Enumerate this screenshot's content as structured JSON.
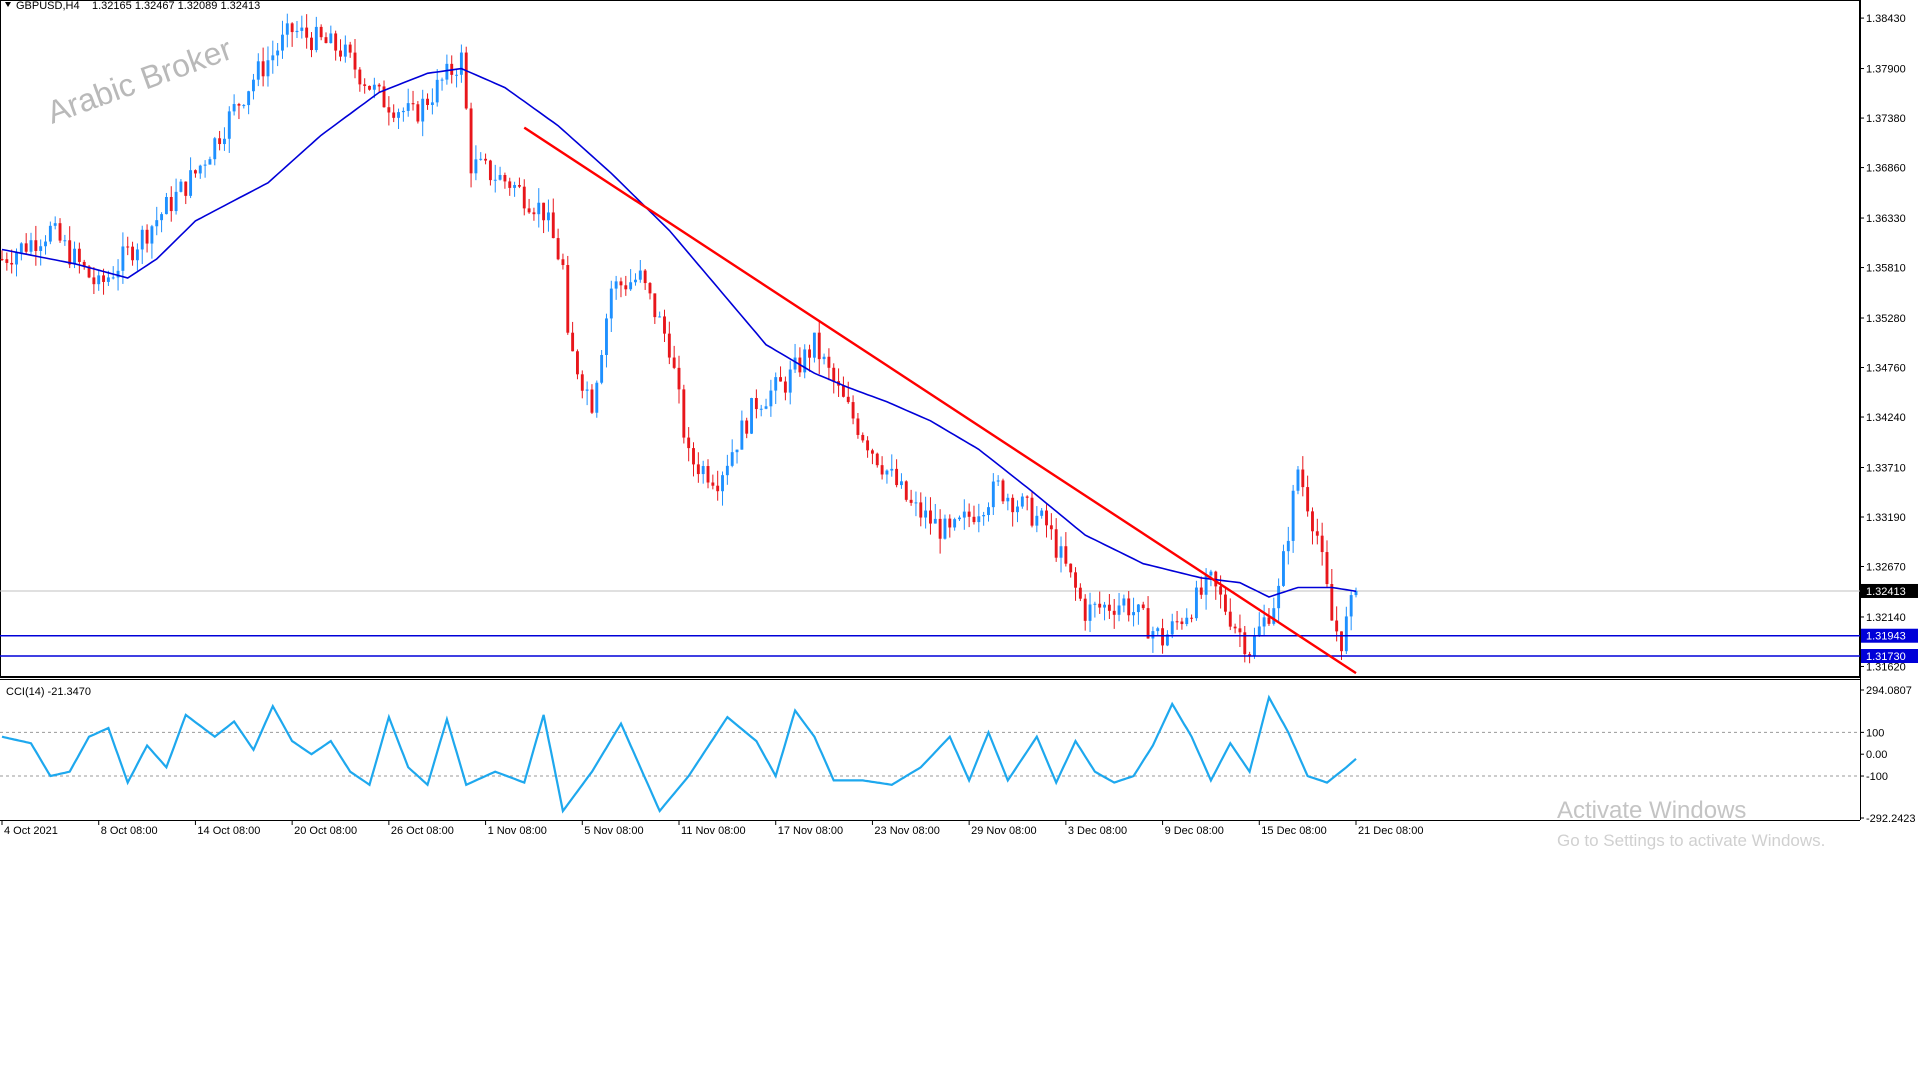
{
  "header": {
    "symbol": "GBPUSD,H4",
    "ohlc": "1.32165 1.32467 1.32089 1.32413"
  },
  "watermark": "Arabic Broker",
  "activation": {
    "title": "Activate Windows",
    "subtitle": "Go to Settings to activate Windows."
  },
  "colors": {
    "bull": "#1e90ff",
    "bear": "#e8161b",
    "ma": "#0000d8",
    "trendline": "#ff0000",
    "support": "#0000d8",
    "cci": "#1ea8ee",
    "grid": "#c0c0c0",
    "badge_bg": "#0000d8",
    "price_badge_bg": "#000000"
  },
  "chart_data": [
    {
      "type": "candlestick",
      "title": "GBPUSD,H4",
      "ylim": [
        1.3152,
        1.3862
      ],
      "y_ticks": [
        "1.38430",
        "1.37900",
        "1.37380",
        "1.36860",
        "1.36330",
        "1.35810",
        "1.35280",
        "1.34760",
        "1.34240",
        "1.33710",
        "1.33190",
        "1.32670",
        "1.32140",
        "1.31620"
      ],
      "x_ticks": [
        "4 Oct 2021",
        "8 Oct 08:00",
        "14 Oct 08:00",
        "20 Oct 08:00",
        "26 Oct 08:00",
        "1 Nov 08:00",
        "5 Nov 08:00",
        "11 Nov 08:00",
        "17 Nov 08:00",
        "23 Nov 08:00",
        "29 Nov 08:00",
        "3 Dec 08:00",
        "9 Dec 08:00",
        "15 Dec 08:00",
        "21 Dec 08:00"
      ],
      "x_tick_index": [
        0,
        20,
        40,
        60,
        80,
        100,
        120,
        140,
        160,
        180,
        200,
        220,
        240,
        260,
        280
      ],
      "bar_count": 281,
      "last_price": "1.32413",
      "price_path": [
        [
          0,
          1.359
        ],
        [
          10,
          1.362
        ],
        [
          20,
          1.356
        ],
        [
          30,
          1.362
        ],
        [
          40,
          1.368
        ],
        [
          52,
          1.378
        ],
        [
          60,
          1.383
        ],
        [
          70,
          1.381
        ],
        [
          78,
          1.376
        ],
        [
          85,
          1.374
        ],
        [
          95,
          1.38
        ],
        [
          97,
          1.369
        ],
        [
          105,
          1.367
        ],
        [
          112,
          1.364
        ],
        [
          116,
          1.358
        ],
        [
          117,
          1.35
        ],
        [
          122,
          1.344
        ],
        [
          126,
          1.356
        ],
        [
          132,
          1.357
        ],
        [
          138,
          1.35
        ],
        [
          142,
          1.338
        ],
        [
          148,
          1.336
        ],
        [
          156,
          1.344
        ],
        [
          162,
          1.346
        ],
        [
          168,
          1.35
        ],
        [
          174,
          1.344
        ],
        [
          180,
          1.339
        ],
        [
          188,
          1.333
        ],
        [
          196,
          1.33
        ],
        [
          206,
          1.335
        ],
        [
          216,
          1.331
        ],
        [
          224,
          1.322
        ],
        [
          232,
          1.323
        ],
        [
          240,
          1.319
        ],
        [
          250,
          1.325
        ],
        [
          258,
          1.318
        ],
        [
          264,
          1.324
        ],
        [
          268,
          1.337
        ],
        [
          272,
          1.33
        ],
        [
          275,
          1.321
        ],
        [
          277,
          1.319
        ],
        [
          280,
          1.3241
        ]
      ],
      "moving_average": [
        [
          0,
          1.36
        ],
        [
          15,
          1.3585
        ],
        [
          26,
          1.357
        ],
        [
          32,
          1.359
        ],
        [
          40,
          1.363
        ],
        [
          55,
          1.367
        ],
        [
          66,
          1.372
        ],
        [
          78,
          1.3765
        ],
        [
          88,
          1.3785
        ],
        [
          95,
          1.379
        ],
        [
          104,
          1.377
        ],
        [
          115,
          1.373
        ],
        [
          126,
          1.368
        ],
        [
          138,
          1.362
        ],
        [
          148,
          1.356
        ],
        [
          158,
          1.35
        ],
        [
          168,
          1.347
        ],
        [
          175,
          1.3455
        ],
        [
          183,
          1.344
        ],
        [
          192,
          1.342
        ],
        [
          202,
          1.339
        ],
        [
          212,
          1.335
        ],
        [
          224,
          1.33
        ],
        [
          236,
          1.327
        ],
        [
          248,
          1.3255
        ],
        [
          256,
          1.325
        ],
        [
          262,
          1.3235
        ],
        [
          268,
          1.3245
        ],
        [
          275,
          1.3245
        ],
        [
          280,
          1.3241
        ]
      ],
      "trendline": {
        "start": [
          108,
          1.3728
        ],
        "end": [
          280,
          1.3155
        ]
      },
      "horizontal_lines": [
        {
          "price": "1.31943",
          "value": 1.31943
        },
        {
          "price": "1.31730",
          "value": 1.3173
        }
      ]
    },
    {
      "type": "line",
      "title": "CCI(14) -21.3470",
      "ylim": [
        -292.2423,
        294.0807
      ],
      "y_ticks": [
        "294.0807",
        "100",
        "0.00",
        "-100",
        "-292.2423"
      ],
      "levels": [
        100,
        -100
      ],
      "cci_path": [
        [
          0,
          80
        ],
        [
          6,
          50
        ],
        [
          10,
          -100
        ],
        [
          14,
          -80
        ],
        [
          18,
          80
        ],
        [
          22,
          120
        ],
        [
          26,
          -130
        ],
        [
          30,
          40
        ],
        [
          34,
          -60
        ],
        [
          38,
          180
        ],
        [
          44,
          80
        ],
        [
          48,
          150
        ],
        [
          52,
          20
        ],
        [
          56,
          220
        ],
        [
          60,
          60
        ],
        [
          64,
          0
        ],
        [
          68,
          60
        ],
        [
          72,
          -80
        ],
        [
          76,
          -140
        ],
        [
          80,
          170
        ],
        [
          84,
          -60
        ],
        [
          88,
          -140
        ],
        [
          92,
          160
        ],
        [
          96,
          -140
        ],
        [
          102,
          -80
        ],
        [
          108,
          -130
        ],
        [
          112,
          180
        ],
        [
          116,
          -260
        ],
        [
          122,
          -80
        ],
        [
          128,
          140
        ],
        [
          136,
          -260
        ],
        [
          142,
          -100
        ],
        [
          150,
          170
        ],
        [
          156,
          60
        ],
        [
          160,
          -100
        ],
        [
          164,
          200
        ],
        [
          168,
          80
        ],
        [
          172,
          -120
        ],
        [
          178,
          -120
        ],
        [
          184,
          -140
        ],
        [
          190,
          -60
        ],
        [
          196,
          80
        ],
        [
          200,
          -120
        ],
        [
          204,
          100
        ],
        [
          208,
          -120
        ],
        [
          214,
          80
        ],
        [
          218,
          -130
        ],
        [
          222,
          60
        ],
        [
          226,
          -80
        ],
        [
          230,
          -130
        ],
        [
          234,
          -100
        ],
        [
          238,
          40
        ],
        [
          242,
          230
        ],
        [
          246,
          80
        ],
        [
          250,
          -120
        ],
        [
          254,
          50
        ],
        [
          258,
          -80
        ],
        [
          262,
          260
        ],
        [
          266,
          100
        ],
        [
          270,
          -100
        ],
        [
          274,
          -130
        ],
        [
          278,
          -60
        ],
        [
          280,
          -21
        ]
      ]
    }
  ]
}
